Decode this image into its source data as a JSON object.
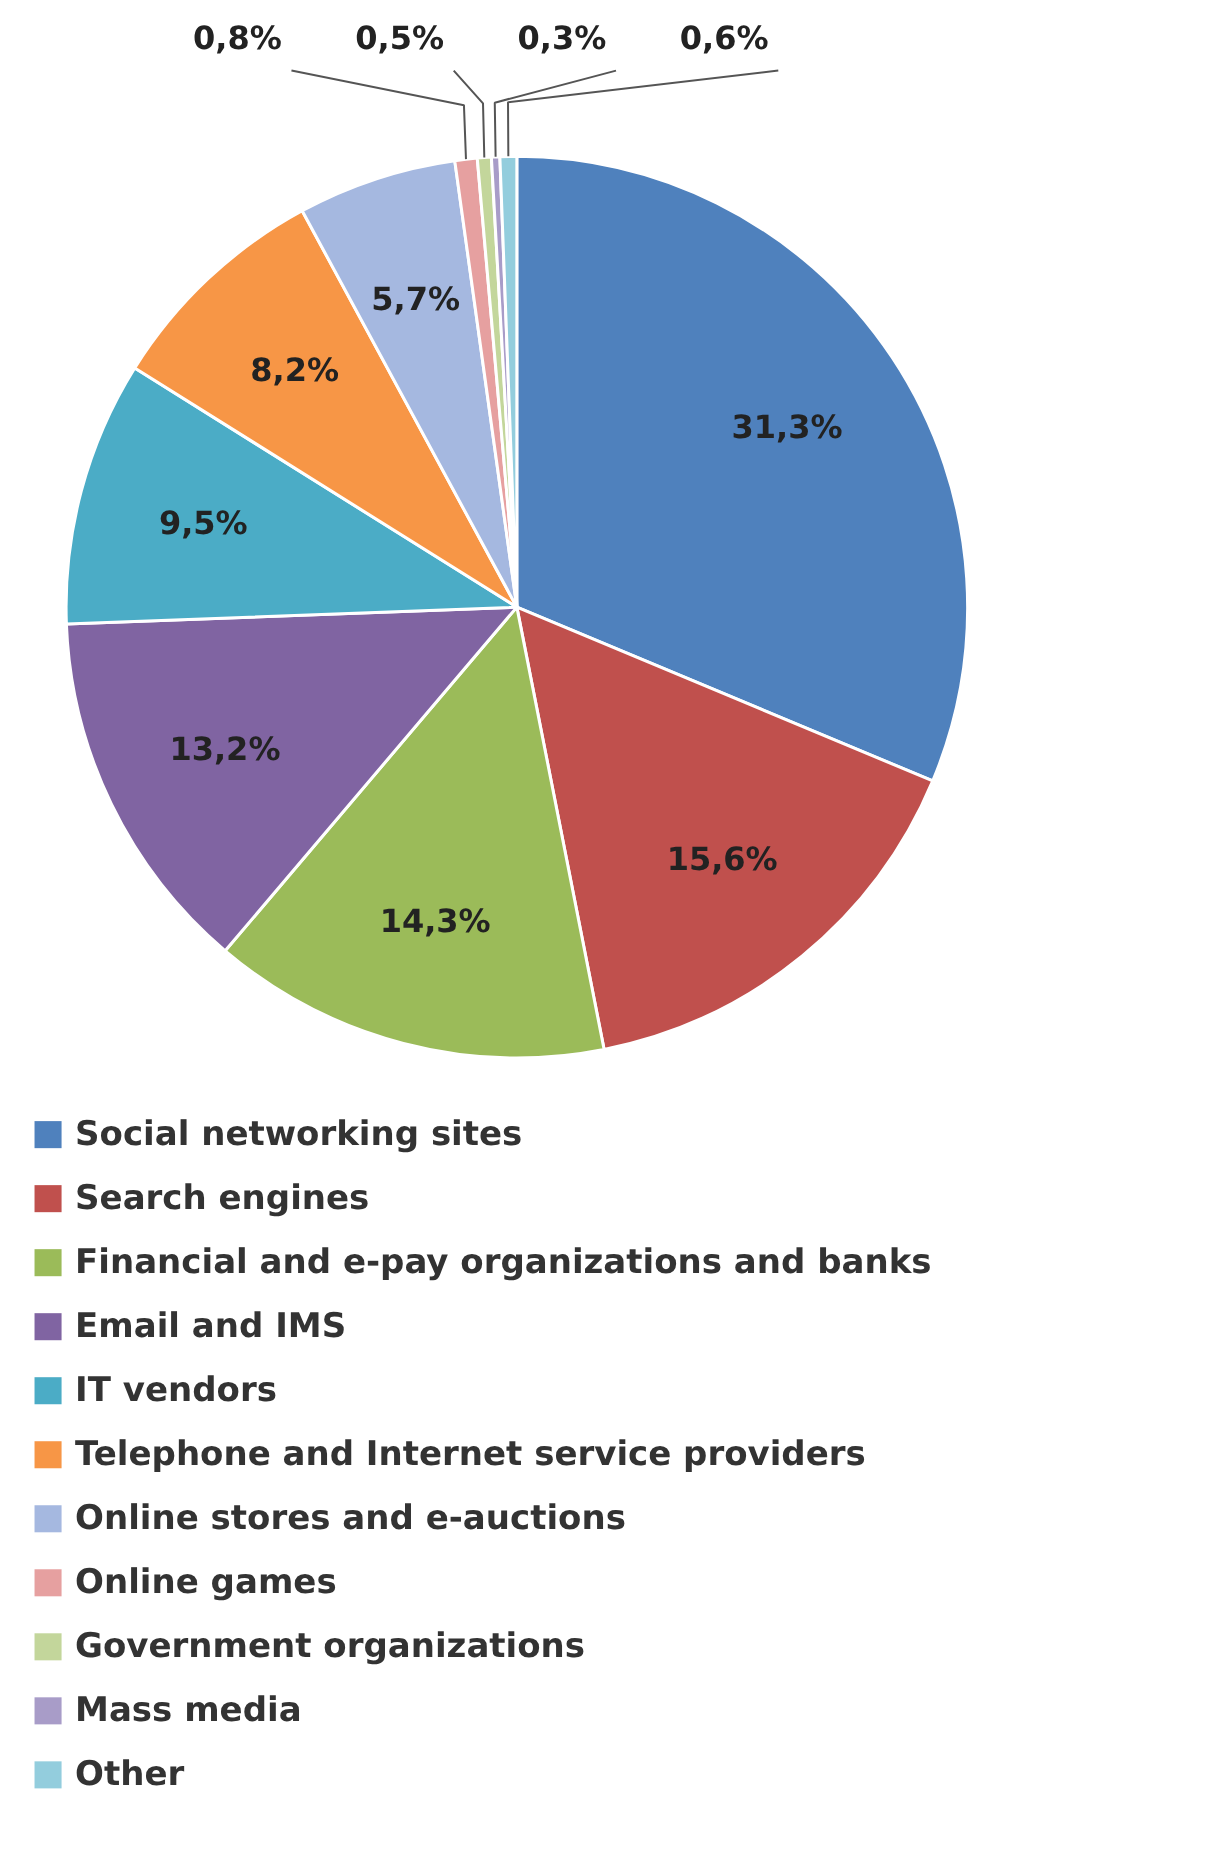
{
  "chart_data": {
    "type": "pie",
    "categories": [
      "Social networking sites",
      "Search engines",
      "Financial and e-pay organizations and banks",
      "Email and IMS",
      "IT vendors",
      "Telephone and Internet service providers",
      "Online stores and e-auctions",
      "Online games",
      "Government organizations",
      "Mass media",
      "Other"
    ],
    "values": [
      31.3,
      15.6,
      14.3,
      13.2,
      9.5,
      8.2,
      5.7,
      0.8,
      0.5,
      0.3,
      0.6
    ],
    "value_labels": [
      "31,3%",
      "15,6%",
      "14,3%",
      "13,2%",
      "9,5%",
      "8,2%",
      "5,7%",
      "0,8%",
      "0,5%",
      "0,3%",
      "0,6%"
    ],
    "colors": [
      "#4f81bd",
      "#c0504d",
      "#9bbb59",
      "#8064a2",
      "#4bacc6",
      "#f79646",
      "#a5b8e0",
      "#e6a0a0",
      "#c3d69b",
      "#a89cc8",
      "#93cddd"
    ],
    "legend": "bottom"
  }
}
